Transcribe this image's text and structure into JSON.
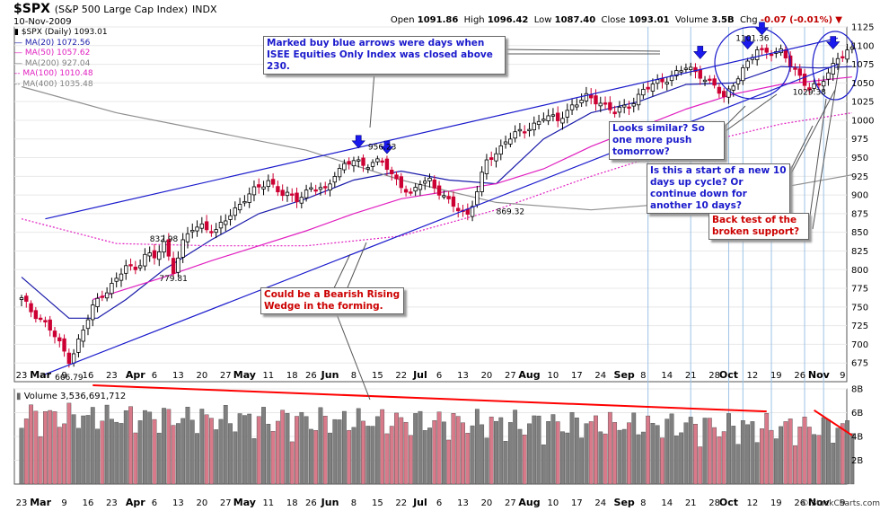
{
  "header": {
    "symbol": "$SPX",
    "description": "(S&P 500 Large Cap Index)",
    "exchange": "INDX",
    "date": "10-Nov-2009",
    "open_label": "Open",
    "open": "1091.86",
    "high_label": "High",
    "high": "1096.42",
    "low_label": "Low",
    "low": "1087.40",
    "close_label": "Close",
    "close": "1093.01",
    "volume_label": "Volume",
    "volume": "3.5B",
    "chg_label": "Chg",
    "chg": "-0.07 (-0.01%)",
    "chg_arrow": "▼",
    "source": "© StockCharts.com"
  },
  "legend": {
    "price": "$SPX (Daily) 1093.01",
    "ma20": "MA(20) 1072.56",
    "ma50": "MA(50) 1057.62",
    "ma200": "MA(200) 927.04",
    "ma100": "MA(100) 1010.48",
    "ma400": "MA(400) 1035.48"
  },
  "colors": {
    "up": "#000000",
    "down": "#cc0033",
    "ma20": "#1a1aaa",
    "ma50": "#e020c0",
    "ma200": "#909090",
    "ma100": "#e020c0",
    "trend": "#1a1acc",
    "vol_up": "#808080",
    "vol_down": "#d97a8a",
    "vol_trend": "#ff0000"
  },
  "annotations": {
    "buy_arrows": "Marked buy blue arrows were days when ISEE Equities Only Index was closed above 230.",
    "looks_similar": "Looks similar? So one more push tomorrow?",
    "new_cycle": "Is this a start of a new 10 days up cycle? Or continue down for another 10 days?",
    "back_test": "Back test of the broken support?",
    "wedge": "Could be a Bearish Rising Wedge in the forming."
  },
  "volume_label": "Volume 3,536,691,712",
  "chart_data": {
    "type": "candlestick",
    "title": "$SPX (Daily)",
    "price_axis": {
      "range": [
        650,
        1125
      ],
      "ticks": [
        675,
        700,
        725,
        750,
        775,
        800,
        825,
        850,
        875,
        900,
        925,
        950,
        975,
        1000,
        1025,
        1050,
        1075,
        1100,
        1125
      ]
    },
    "volume_axis": {
      "range": [
        0,
        8
      ],
      "ticks": [
        "2B",
        "4B",
        "6B",
        "8B"
      ]
    },
    "x_tick_labels": [
      "23",
      "Mar",
      "9",
      "16",
      "23",
      "Apr",
      "6",
      "13",
      "20",
      "27",
      "May",
      "11",
      "18",
      "26",
      "Jun",
      "8",
      "15",
      "22",
      "Jul",
      "6",
      "13",
      "20",
      "27",
      "Aug",
      "10",
      "17",
      "24",
      "Sep",
      "8",
      "14",
      "21",
      "28",
      "Oct",
      "12",
      "19",
      "26",
      "Nov",
      "9"
    ],
    "x_tick_days": [
      0,
      4,
      9,
      14,
      19,
      24,
      28,
      33,
      38,
      43,
      47,
      52,
      57,
      61,
      65,
      70,
      75,
      80,
      84,
      88,
      93,
      98,
      103,
      107,
      112,
      117,
      122,
      127,
      131,
      136,
      141,
      146,
      149,
      154,
      159,
      164,
      168,
      173
    ],
    "price_labels": [
      {
        "day": 10,
        "value": 666.79,
        "text": "666.79"
      },
      {
        "day": 30,
        "value": 832.98,
        "text": "832.98"
      },
      {
        "day": 32,
        "value": 779.81,
        "text": "779.81"
      },
      {
        "day": 76,
        "value": 956.23,
        "text": "956.23"
      },
      {
        "day": 103,
        "value": 869.32,
        "text": "869.32"
      },
      {
        "day": 154,
        "value": 1101.36,
        "text": "1101.36"
      },
      {
        "day": 166,
        "value": 1029.38,
        "text": "1029.38"
      }
    ],
    "buy_arrow_days": [
      71,
      77,
      143,
      153,
      156,
      171
    ],
    "cycle_line_days": [
      132,
      141,
      149,
      152,
      158,
      165,
      169
    ],
    "trendlines": [
      {
        "name": "upper-wedge",
        "from": {
          "day": 5,
          "value": 868
        },
        "to": {
          "day": 172,
          "value": 1110
        }
      },
      {
        "name": "lower-wedge",
        "from": {
          "day": 5,
          "value": 660
        },
        "to": {
          "day": 172,
          "value": 1075
        }
      }
    ],
    "volume_trendlines": [
      {
        "from": {
          "day": 15,
          "value": 8.3
        },
        "to": {
          "day": 157,
          "value": 6.1
        }
      },
      {
        "from": {
          "day": 167,
          "value": 6.2
        },
        "to": {
          "day": 175,
          "value": 4.1
        }
      }
    ],
    "close_path": [
      {
        "day": 0,
        "value": 760
      },
      {
        "day": 2,
        "value": 745
      },
      {
        "day": 4,
        "value": 735
      },
      {
        "day": 6,
        "value": 720
      },
      {
        "day": 8,
        "value": 700
      },
      {
        "day": 10,
        "value": 680
      },
      {
        "day": 11,
        "value": 690
      },
      {
        "day": 13,
        "value": 718
      },
      {
        "day": 15,
        "value": 750
      },
      {
        "day": 17,
        "value": 768
      },
      {
        "day": 20,
        "value": 785
      },
      {
        "day": 22,
        "value": 805
      },
      {
        "day": 24,
        "value": 802
      },
      {
        "day": 26,
        "value": 820
      },
      {
        "day": 28,
        "value": 815
      },
      {
        "day": 30,
        "value": 836
      },
      {
        "day": 32,
        "value": 800
      },
      {
        "day": 34,
        "value": 835
      },
      {
        "day": 36,
        "value": 855
      },
      {
        "day": 38,
        "value": 860
      },
      {
        "day": 41,
        "value": 850
      },
      {
        "day": 44,
        "value": 875
      },
      {
        "day": 47,
        "value": 895
      },
      {
        "day": 49,
        "value": 905
      },
      {
        "day": 52,
        "value": 920
      },
      {
        "day": 55,
        "value": 900
      },
      {
        "day": 58,
        "value": 895
      },
      {
        "day": 61,
        "value": 910
      },
      {
        "day": 64,
        "value": 905
      },
      {
        "day": 66,
        "value": 930
      },
      {
        "day": 68,
        "value": 940
      },
      {
        "day": 70,
        "value": 945
      },
      {
        "day": 72,
        "value": 940
      },
      {
        "day": 74,
        "value": 945
      },
      {
        "day": 76,
        "value": 945
      },
      {
        "day": 78,
        "value": 925
      },
      {
        "day": 80,
        "value": 915
      },
      {
        "day": 82,
        "value": 900
      },
      {
        "day": 84,
        "value": 915
      },
      {
        "day": 86,
        "value": 920
      },
      {
        "day": 88,
        "value": 905
      },
      {
        "day": 90,
        "value": 890
      },
      {
        "day": 92,
        "value": 880
      },
      {
        "day": 94,
        "value": 875
      },
      {
        "day": 96,
        "value": 905
      },
      {
        "day": 98,
        "value": 945
      },
      {
        "day": 100,
        "value": 955
      },
      {
        "day": 102,
        "value": 975
      },
      {
        "day": 104,
        "value": 980
      },
      {
        "day": 107,
        "value": 990
      },
      {
        "day": 110,
        "value": 1005
      },
      {
        "day": 113,
        "value": 1000
      },
      {
        "day": 116,
        "value": 1020
      },
      {
        "day": 119,
        "value": 1030
      },
      {
        "day": 122,
        "value": 1025
      },
      {
        "day": 125,
        "value": 1010
      },
      {
        "day": 128,
        "value": 1020
      },
      {
        "day": 131,
        "value": 1040
      },
      {
        "day": 134,
        "value": 1050
      },
      {
        "day": 137,
        "value": 1060
      },
      {
        "day": 140,
        "value": 1070
      },
      {
        "day": 143,
        "value": 1062
      },
      {
        "day": 146,
        "value": 1045
      },
      {
        "day": 148,
        "value": 1030
      },
      {
        "day": 151,
        "value": 1060
      },
      {
        "day": 153,
        "value": 1075
      },
      {
        "day": 155,
        "value": 1095
      },
      {
        "day": 158,
        "value": 1092
      },
      {
        "day": 160,
        "value": 1090
      },
      {
        "day": 162,
        "value": 1075
      },
      {
        "day": 164,
        "value": 1060
      },
      {
        "day": 166,
        "value": 1042
      },
      {
        "day": 168,
        "value": 1045
      },
      {
        "day": 170,
        "value": 1065
      },
      {
        "day": 172,
        "value": 1085
      },
      {
        "day": 175,
        "value": 1093
      }
    ],
    "series": [
      {
        "name": "MA(20)",
        "value": 1072.56,
        "points": [
          {
            "day": 0,
            "value": 790
          },
          {
            "day": 10,
            "value": 735
          },
          {
            "day": 16,
            "value": 735
          },
          {
            "day": 22,
            "value": 760
          },
          {
            "day": 30,
            "value": 800
          },
          {
            "day": 40,
            "value": 840
          },
          {
            "day": 50,
            "value": 875
          },
          {
            "day": 60,
            "value": 895
          },
          {
            "day": 70,
            "value": 920
          },
          {
            "day": 80,
            "value": 932
          },
          {
            "day": 90,
            "value": 920
          },
          {
            "day": 100,
            "value": 915
          },
          {
            "day": 110,
            "value": 975
          },
          {
            "day": 120,
            "value": 1010
          },
          {
            "day": 130,
            "value": 1025
          },
          {
            "day": 140,
            "value": 1048
          },
          {
            "day": 150,
            "value": 1050
          },
          {
            "day": 160,
            "value": 1072
          },
          {
            "day": 168,
            "value": 1070
          },
          {
            "day": 175,
            "value": 1072
          }
        ]
      },
      {
        "name": "MA(50)",
        "value": 1057.62,
        "points": [
          {
            "day": 15,
            "value": 760
          },
          {
            "day": 20,
            "value": 770
          },
          {
            "day": 30,
            "value": 790
          },
          {
            "day": 40,
            "value": 812
          },
          {
            "day": 50,
            "value": 832
          },
          {
            "day": 60,
            "value": 852
          },
          {
            "day": 70,
            "value": 875
          },
          {
            "day": 80,
            "value": 895
          },
          {
            "day": 90,
            "value": 905
          },
          {
            "day": 100,
            "value": 915
          },
          {
            "day": 110,
            "value": 935
          },
          {
            "day": 120,
            "value": 965
          },
          {
            "day": 130,
            "value": 990
          },
          {
            "day": 140,
            "value": 1015
          },
          {
            "day": 150,
            "value": 1035
          },
          {
            "day": 160,
            "value": 1048
          },
          {
            "day": 175,
            "value": 1058
          }
        ]
      },
      {
        "name": "MA(100)",
        "value": 1010.48,
        "points": [
          {
            "day": 0,
            "value": 868
          },
          {
            "day": 20,
            "value": 835
          },
          {
            "day": 40,
            "value": 832
          },
          {
            "day": 60,
            "value": 832
          },
          {
            "day": 80,
            "value": 845
          },
          {
            "day": 100,
            "value": 880
          },
          {
            "day": 120,
            "value": 925
          },
          {
            "day": 140,
            "value": 965
          },
          {
            "day": 160,
            "value": 995
          },
          {
            "day": 175,
            "value": 1010
          }
        ]
      },
      {
        "name": "MA(200)",
        "value": 927.04,
        "points": [
          {
            "day": 0,
            "value": 1045
          },
          {
            "day": 20,
            "value": 1010
          },
          {
            "day": 40,
            "value": 985
          },
          {
            "day": 60,
            "value": 960
          },
          {
            "day": 80,
            "value": 920
          },
          {
            "day": 100,
            "value": 890
          },
          {
            "day": 120,
            "value": 880
          },
          {
            "day": 140,
            "value": 890
          },
          {
            "day": 160,
            "value": 910
          },
          {
            "day": 175,
            "value": 927
          }
        ]
      }
    ]
  }
}
